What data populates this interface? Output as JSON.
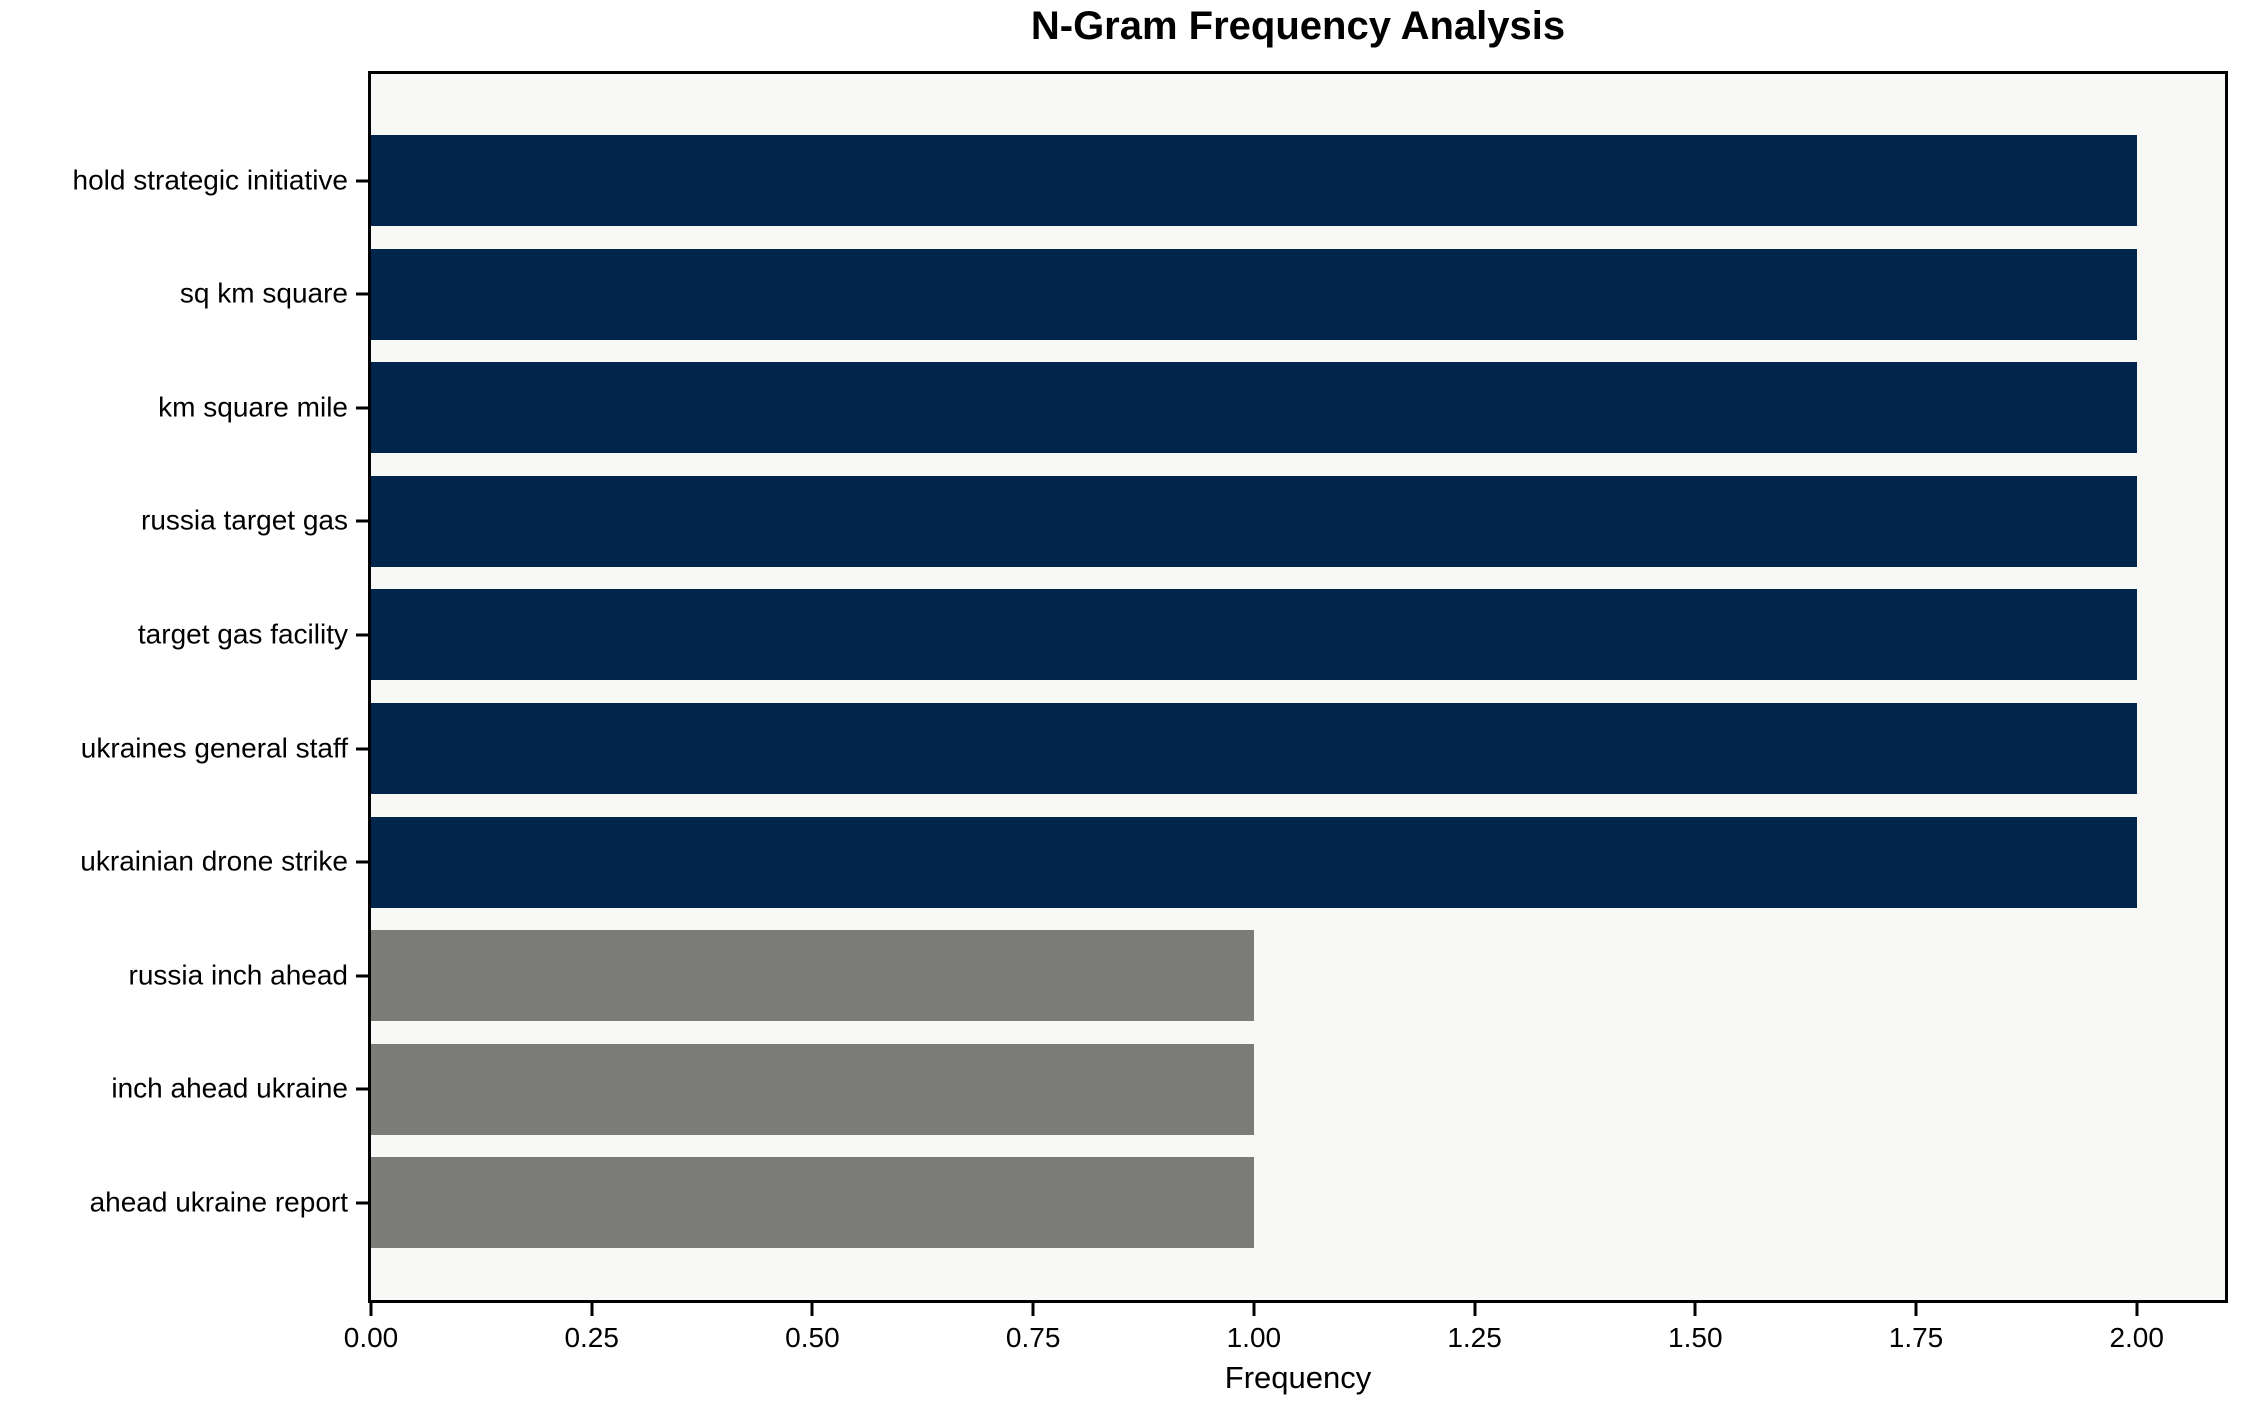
{
  "chart_data": {
    "type": "bar",
    "orientation": "horizontal",
    "title": "N-Gram Frequency Analysis",
    "xlabel": "Frequency",
    "ylabel": "",
    "categories": [
      "hold strategic initiative",
      "sq km square",
      "km square mile",
      "russia target gas",
      "target gas facility",
      "ukraines general staff",
      "ukrainian drone strike",
      "russia inch ahead",
      "inch ahead ukraine",
      "ahead ukraine report"
    ],
    "values": [
      2,
      2,
      2,
      2,
      2,
      2,
      2,
      1,
      1,
      1
    ],
    "bar_colors": [
      "#02254c",
      "#02254c",
      "#02254c",
      "#02254c",
      "#02254c",
      "#02254c",
      "#02254c",
      "#7b7b78",
      "#7b7b78",
      "#7b7b78"
    ],
    "xlim": [
      0,
      2.1
    ],
    "x_tick_values": [
      0,
      0.25,
      0.5,
      0.75,
      1.0,
      1.25,
      1.5,
      1.75,
      2.0
    ],
    "x_tick_labels": [
      "0.00",
      "0.25",
      "0.50",
      "0.75",
      "1.00",
      "1.25",
      "1.50",
      "1.75",
      "2.00"
    ],
    "grid": false,
    "legend": "none",
    "plot_background": "#f8f8f7",
    "figure_background": "#ffffff",
    "spine_color": "#000000",
    "color_meaning": {
      "#02254c": "frequency 2 n-grams",
      "#7b7b78": "frequency 1 n-grams"
    }
  }
}
